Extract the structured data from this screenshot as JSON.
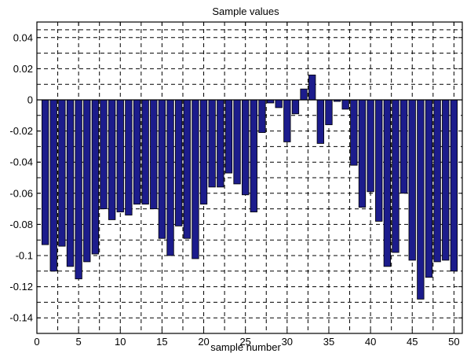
{
  "chart_data": {
    "type": "bar",
    "title": "Sample values",
    "xlabel": "sample number",
    "ylabel": "",
    "xlim": [
      0,
      51
    ],
    "ylim": [
      -0.15,
      0.05
    ],
    "xticks": [
      0,
      5,
      10,
      15,
      20,
      25,
      30,
      35,
      40,
      45,
      50
    ],
    "yticks": [
      0.04,
      0.02,
      0,
      -0.02,
      -0.04,
      -0.06,
      -0.08,
      -0.1,
      -0.12,
      -0.14
    ],
    "ytick_labels": [
      "0.04",
      "0.02",
      "0",
      "-0.02",
      "-0.04",
      "-0.06",
      "-0.08",
      "-0.1",
      "-0.12",
      "-0.14"
    ],
    "grid": true,
    "bar_color": "#1c1c8c",
    "x": [
      1,
      2,
      3,
      4,
      5,
      6,
      7,
      8,
      9,
      10,
      11,
      12,
      13,
      14,
      15,
      16,
      17,
      18,
      19,
      20,
      21,
      22,
      23,
      24,
      25,
      26,
      27,
      28,
      29,
      30,
      31,
      32,
      33,
      34,
      35,
      36,
      37,
      38,
      39,
      40,
      41,
      42,
      43,
      44,
      45,
      46,
      47,
      48,
      49,
      50
    ],
    "values": [
      -0.093,
      -0.11,
      -0.094,
      -0.107,
      -0.115,
      -0.104,
      -0.099,
      -0.07,
      -0.077,
      -0.072,
      -0.074,
      -0.067,
      -0.067,
      -0.07,
      -0.089,
      -0.1,
      -0.081,
      -0.089,
      -0.102,
      -0.067,
      -0.056,
      -0.056,
      -0.047,
      -0.054,
      -0.061,
      -0.072,
      -0.021,
      -0.002,
      -0.005,
      -0.027,
      -0.009,
      0.007,
      0.016,
      -0.028,
      -0.016,
      -0.001,
      -0.006,
      -0.042,
      -0.069,
      -0.059,
      -0.078,
      -0.107,
      -0.098,
      -0.06,
      -0.103,
      -0.128,
      -0.114,
      -0.104,
      -0.103,
      -0.11
    ]
  }
}
